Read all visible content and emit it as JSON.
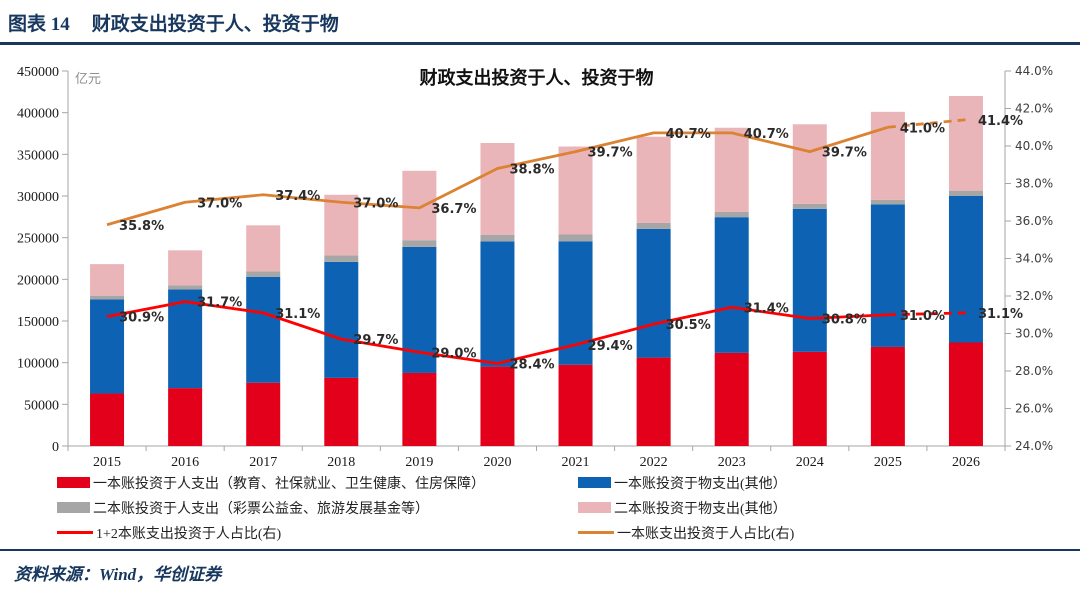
{
  "header": {
    "figure_label": "图表 14",
    "figure_title": "财政支出投资于人、投资于物"
  },
  "chart_data": {
    "type": "bar",
    "subtype": "stacked-bar-with-lines",
    "title": "财政支出投资于人、投资于物",
    "unit_label": "亿元",
    "categories": [
      "2015",
      "2016",
      "2017",
      "2018",
      "2019",
      "2020",
      "2021",
      "2022",
      "2023",
      "2024",
      "2025",
      "2026"
    ],
    "bar_series": [
      {
        "name": "一本账投资于人支出（教育、社保就业、卫生健康、住房保障）",
        "color": "#e2001a",
        "values": [
          62964,
          69469,
          75954,
          81735,
          87667,
          95288,
          97532,
          106068,
          111752,
          112991,
          118900,
          124200
        ]
      },
      {
        "name": "一本账投资于物支出(其他）",
        "color": "#0d62b4",
        "values": [
          112914,
          118286,
          127131,
          139171,
          151207,
          150300,
          148141,
          154541,
          162822,
          171621,
          171100,
          175800
        ]
      },
      {
        "name": "二本账投资于人支出（彩票公益金、旅游发展基金等）",
        "color": "#a6a6a6",
        "values": [
          4473,
          4957,
          6394,
          7801,
          8102,
          7971,
          8112,
          7146,
          6285,
          5927,
          5410,
          6420
        ]
      },
      {
        "name": "二本账投资于物支出(其他）",
        "color": "#e9b5b8",
        "values": [
          37891,
          42071,
          55306,
          72761,
          83263,
          110028,
          105578,
          103393,
          101054,
          95560,
          105590,
          113580
        ]
      }
    ],
    "line_series": [
      {
        "name": "1+2本账支出投资于人占比(右)",
        "color": "#ff0000",
        "axis": "right",
        "values": [
          30.9,
          31.7,
          31.1,
          29.7,
          29.0,
          28.4,
          29.4,
          30.5,
          31.4,
          30.8,
          31.0,
          31.1
        ],
        "point_labels": [
          "30.9%",
          "31.7%",
          "31.1%",
          "29.7%",
          "29.0%",
          "28.4%",
          "29.4%",
          "30.5%",
          "31.4%",
          "30.8%",
          "31.0%",
          "31.1%"
        ]
      },
      {
        "name": "一本账支出投资于人占比(右)",
        "color": "#dc8233",
        "axis": "right",
        "values": [
          35.8,
          37.0,
          37.4,
          37.0,
          36.7,
          38.8,
          39.7,
          40.7,
          40.7,
          39.7,
          41.0,
          41.4
        ],
        "point_labels": [
          "35.8%",
          "37.0%",
          "37.4%",
          "37.0%",
          "36.7%",
          "38.8%",
          "39.7%",
          "40.7%",
          "40.7%",
          "39.7%",
          "41.0%",
          "41.4%"
        ]
      }
    ],
    "left_axis": {
      "unit": "亿元",
      "min": 0,
      "max": 450000,
      "step": 50000,
      "tick_labels": [
        "0",
        "50000",
        "100000",
        "150000",
        "200000",
        "250000",
        "300000",
        "350000",
        "400000",
        "450000"
      ]
    },
    "right_axis": {
      "min": 24,
      "max": 44,
      "step": 2,
      "tick_labels": [
        "24.0%",
        "26.0%",
        "28.0%",
        "30.0%",
        "32.0%",
        "34.0%",
        "36.0%",
        "38.0%",
        "40.0%",
        "42.0%",
        "44.0%"
      ]
    },
    "legend_position": "bottom",
    "forecast_last_segment_dashed": true
  },
  "legend": {
    "left_column_order": [
      0,
      2,
      4
    ],
    "right_column_order": [
      1,
      3,
      5
    ]
  },
  "footer": {
    "source": "资料来源：Wind，华创证券"
  }
}
